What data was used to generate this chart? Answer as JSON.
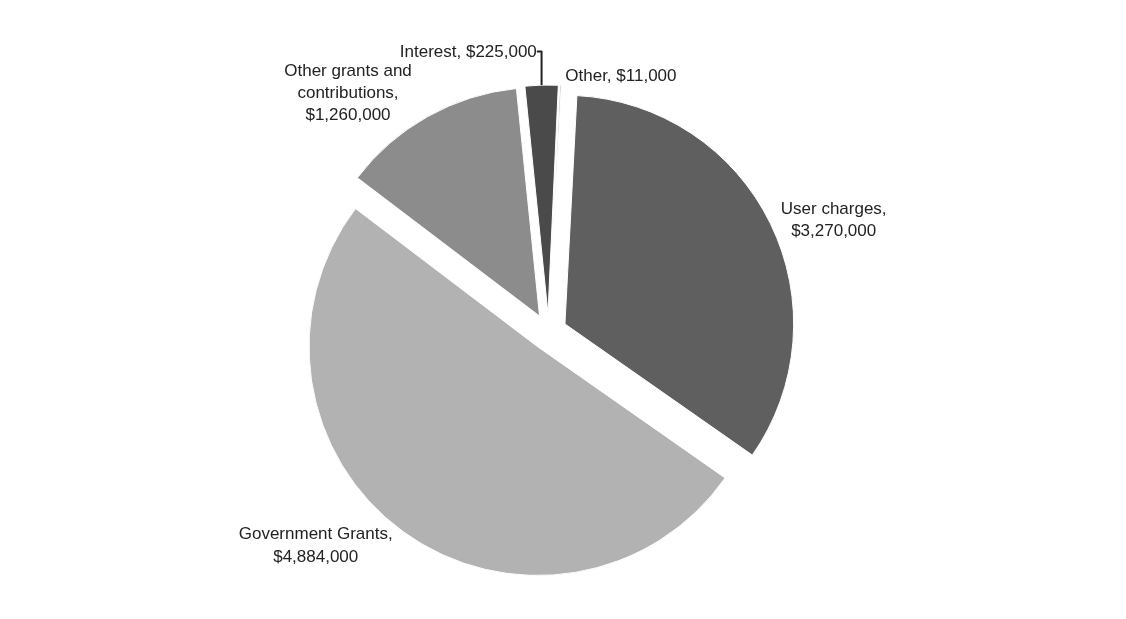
{
  "chart_data": {
    "type": "pie",
    "categories": [
      "User charges, $3,270,000",
      "Government Grants, $4,884,000",
      "Other grants and contributions, $1,260,000",
      "Interest, $225,000",
      "Other, $11,000"
    ],
    "values": [
      3270000,
      4884000,
      1260000,
      225000,
      11000
    ],
    "colors": [
      "#5f5f5f",
      "#b2b2b2",
      "#8c8c8c",
      "#4a4a4a",
      "#c8c8c8"
    ],
    "legend": false
  }
}
